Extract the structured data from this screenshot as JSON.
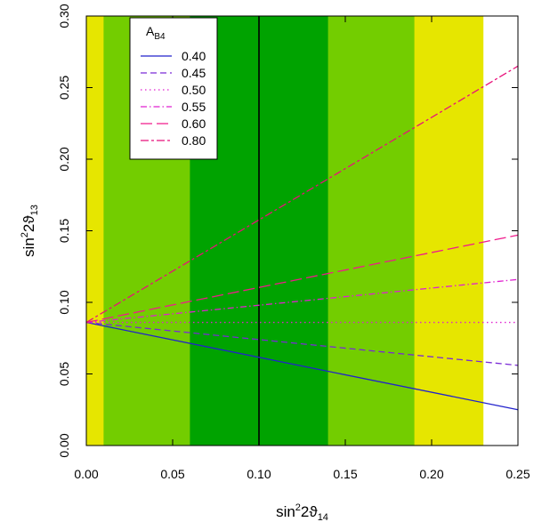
{
  "chart_data": {
    "type": "line",
    "xlabel": {
      "base": "sin",
      "sup": "2",
      "mid": "2",
      "theta": "ϑ",
      "sub": "14"
    },
    "ylabel": {
      "base": "sin",
      "sup": "2",
      "mid": "2",
      "theta": "ϑ",
      "sub": "13"
    },
    "xlim": [
      0.0,
      0.25
    ],
    "ylim": [
      0.0,
      0.3
    ],
    "x_ticks": [
      "0.00",
      "0.05",
      "0.10",
      "0.15",
      "0.20",
      "0.25"
    ],
    "y_ticks": [
      "0.00",
      "0.05",
      "0.10",
      "0.15",
      "0.20",
      "0.25",
      "0.30"
    ],
    "grid": false,
    "bands": [
      {
        "x0": 0.0,
        "x1": 0.23,
        "color": "#e6e600"
      },
      {
        "x0": 0.01,
        "x1": 0.19,
        "color": "#73cd00"
      },
      {
        "x0": 0.06,
        "x1": 0.14,
        "color": "#00a300"
      }
    ],
    "vertical_line": {
      "x": 0.1,
      "color": "#000000"
    },
    "legend": {
      "title_base": "A",
      "title_sub": "B4",
      "placement": "top-left"
    },
    "series": [
      {
        "name": "0.40",
        "color": "#2222cc",
        "dash": "solid",
        "x": [
          0.0,
          0.25
        ],
        "y": [
          0.086,
          0.025
        ]
      },
      {
        "name": "0.45",
        "color": "#7a2ad6",
        "dash": "dashed",
        "x": [
          0.0,
          0.25
        ],
        "y": [
          0.086,
          0.056
        ]
      },
      {
        "name": "0.50",
        "color": "#e020d0",
        "dash": "dotted",
        "x": [
          0.0,
          0.25
        ],
        "y": [
          0.086,
          0.086
        ]
      },
      {
        "name": "0.55",
        "color": "#e020d0",
        "dash": "dashdot",
        "x": [
          0.0,
          0.25
        ],
        "y": [
          0.086,
          0.116
        ]
      },
      {
        "name": "0.60",
        "color": "#f01a8c",
        "dash": "longdash",
        "x": [
          0.0,
          0.25
        ],
        "y": [
          0.086,
          0.147
        ]
      },
      {
        "name": "0.80",
        "color": "#e8107a",
        "dash": "twodash",
        "x": [
          0.0,
          0.25
        ],
        "y": [
          0.086,
          0.265
        ]
      }
    ]
  }
}
